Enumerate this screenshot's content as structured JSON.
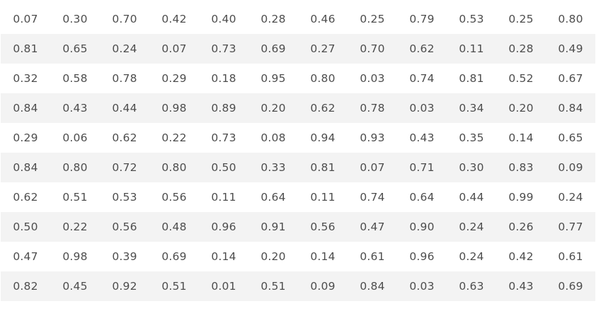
{
  "table": {
    "rows": [
      [
        "0.07",
        "0.30",
        "0.70",
        "0.42",
        "0.40",
        "0.28",
        "0.46",
        "0.25",
        "0.79",
        "0.53",
        "0.25",
        "0.80"
      ],
      [
        "0.81",
        "0.65",
        "0.24",
        "0.07",
        "0.73",
        "0.69",
        "0.27",
        "0.70",
        "0.62",
        "0.11",
        "0.28",
        "0.49"
      ],
      [
        "0.32",
        "0.58",
        "0.78",
        "0.29",
        "0.18",
        "0.95",
        "0.80",
        "0.03",
        "0.74",
        "0.81",
        "0.52",
        "0.67"
      ],
      [
        "0.84",
        "0.43",
        "0.44",
        "0.98",
        "0.89",
        "0.20",
        "0.62",
        "0.78",
        "0.03",
        "0.34",
        "0.20",
        "0.84"
      ],
      [
        "0.29",
        "0.06",
        "0.62",
        "0.22",
        "0.73",
        "0.08",
        "0.94",
        "0.93",
        "0.43",
        "0.35",
        "0.14",
        "0.65"
      ],
      [
        "0.84",
        "0.80",
        "0.72",
        "0.80",
        "0.50",
        "0.33",
        "0.81",
        "0.07",
        "0.71",
        "0.30",
        "0.83",
        "0.09"
      ],
      [
        "0.62",
        "0.51",
        "0.53",
        "0.56",
        "0.11",
        "0.64",
        "0.11",
        "0.74",
        "0.64",
        "0.44",
        "0.99",
        "0.24"
      ],
      [
        "0.50",
        "0.22",
        "0.56",
        "0.48",
        "0.96",
        "0.91",
        "0.56",
        "0.47",
        "0.90",
        "0.24",
        "0.26",
        "0.77"
      ],
      [
        "0.47",
        "0.98",
        "0.39",
        "0.69",
        "0.14",
        "0.20",
        "0.14",
        "0.61",
        "0.96",
        "0.24",
        "0.42",
        "0.61"
      ],
      [
        "0.82",
        "0.45",
        "0.92",
        "0.51",
        "0.01",
        "0.51",
        "0.09",
        "0.84",
        "0.03",
        "0.63",
        "0.43",
        "0.69"
      ]
    ]
  },
  "colors": {
    "text": "#4d4d4d",
    "row_stripe": "#f3f3f3",
    "background": "#ffffff"
  }
}
